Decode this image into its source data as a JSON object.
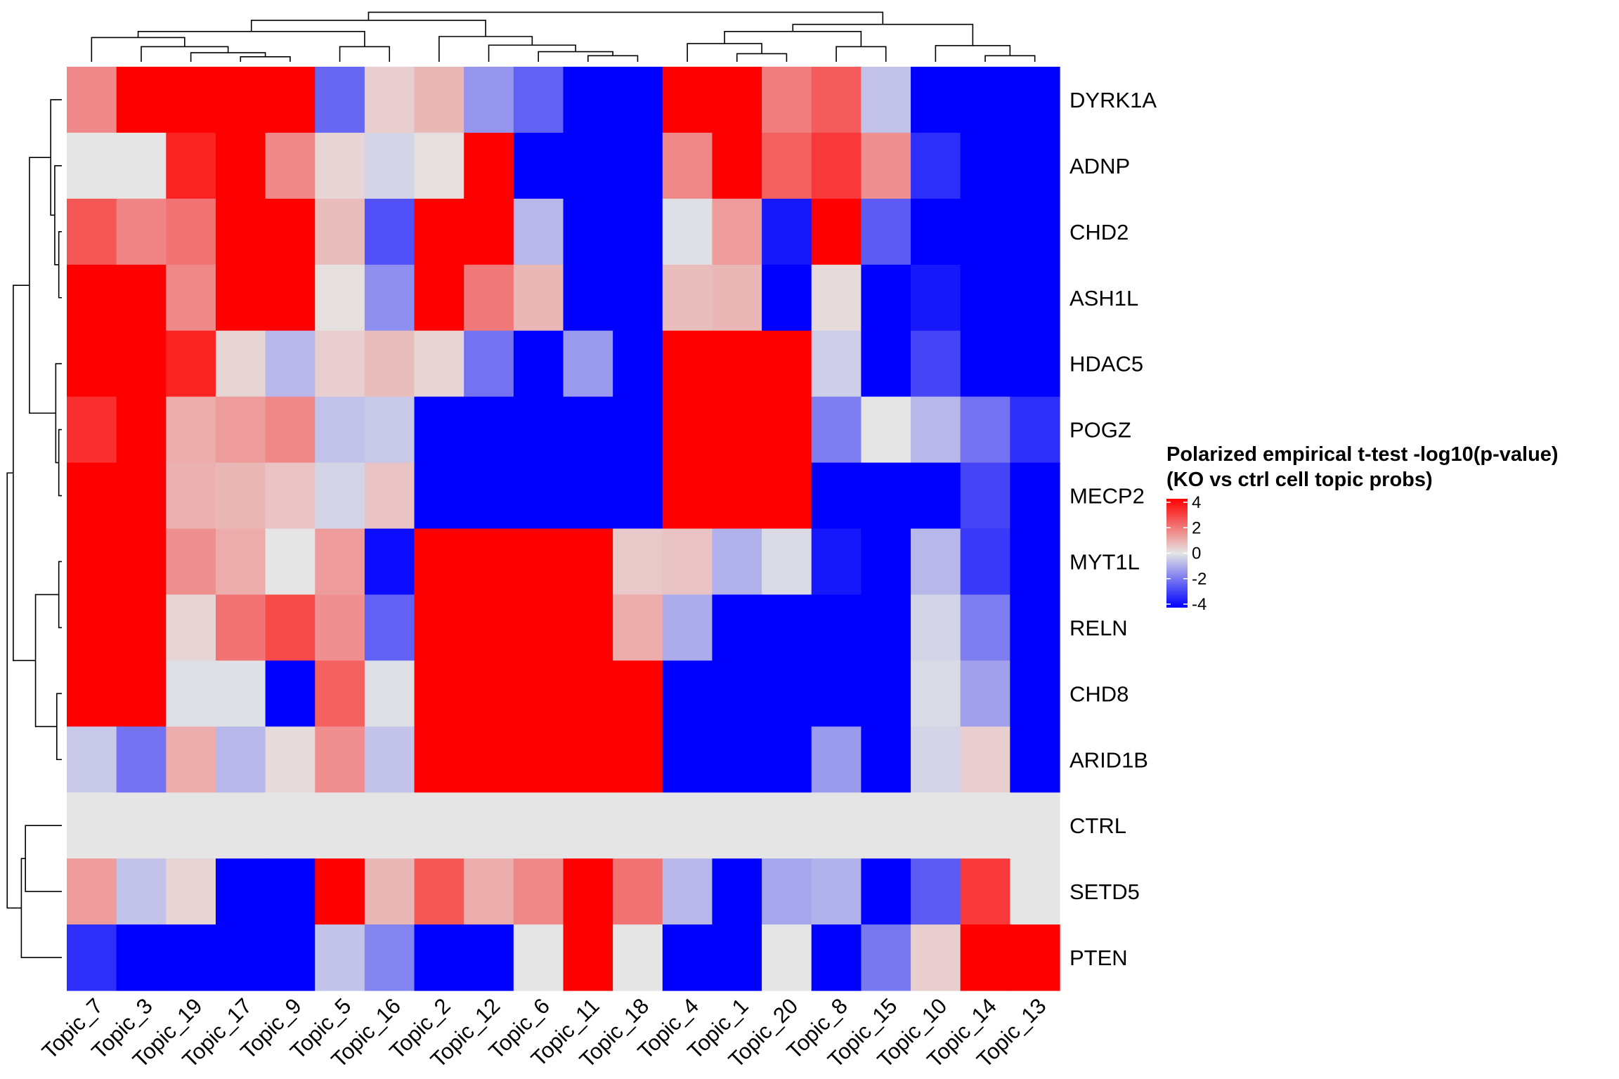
{
  "chart_data": {
    "type": "heatmap",
    "title": "",
    "rows": [
      "DYRK1A",
      "ADNP",
      "CHD2",
      "ASH1L",
      "HDAC5",
      "POGZ",
      "MECP2",
      "MYT1L",
      "RELN",
      "CHD8",
      "ARID1B",
      "CTRL",
      "SETD5",
      "PTEN"
    ],
    "columns": [
      "Topic_7",
      "Topic_3",
      "Topic_19",
      "Topic_17",
      "Topic_9",
      "Topic_5",
      "Topic_16",
      "Topic_2",
      "Topic_12",
      "Topic_6",
      "Topic_11",
      "Topic_18",
      "Topic_4",
      "Topic_1",
      "Topic_20",
      "Topic_8",
      "Topic_15",
      "Topic_10",
      "Topic_14",
      "Topic_13"
    ],
    "values": [
      [
        1.6,
        4,
        4,
        4,
        4,
        -2.2,
        0.4,
        0.8,
        -1.4,
        -2.3,
        -4,
        -4,
        4,
        4,
        1.8,
        2.4,
        -0.6,
        -4,
        -4,
        -4
      ],
      [
        0,
        0,
        3.4,
        4,
        1.6,
        0.3,
        -0.3,
        0.1,
        4,
        -4,
        -4,
        -4,
        1.6,
        4,
        2.3,
        3,
        1.5,
        -3.2,
        -4,
        -4
      ],
      [
        2.5,
        1.7,
        2,
        4,
        4,
        0.7,
        -2.6,
        4,
        4,
        -0.8,
        -4,
        -4,
        -0.1,
        1.3,
        -3.6,
        4,
        -2.4,
        -4,
        -4,
        -4
      ],
      [
        4,
        4,
        1.6,
        4,
        4,
        0.1,
        -1.5,
        4,
        1.9,
        0.8,
        -4,
        -4,
        0.7,
        0.8,
        -4,
        0.2,
        -4,
        -3.6,
        -4,
        -4
      ],
      [
        4,
        4,
        3.4,
        0.3,
        -0.8,
        0.4,
        0.7,
        0.3,
        -2,
        -4,
        -1.3,
        -4,
        4,
        4,
        4,
        -0.4,
        -4,
        -2.8,
        -4,
        -4
      ],
      [
        3.2,
        4,
        1,
        1.3,
        1.6,
        -0.6,
        -0.5,
        -4,
        -4,
        -4,
        -4,
        -4,
        4,
        4,
        4,
        -1.8,
        0,
        -0.8,
        -2,
        -3.2
      ],
      [
        4,
        4,
        0.9,
        0.8,
        0.6,
        -0.3,
        0.6,
        -4,
        -4,
        -4,
        -4,
        -4,
        4,
        4,
        4,
        -4,
        -4,
        -4,
        -2.8,
        -4
      ],
      [
        4,
        4,
        1.5,
        1,
        0,
        1.3,
        -3.8,
        4,
        4,
        4,
        4,
        0.5,
        0.6,
        -0.9,
        -0.2,
        -3.6,
        -4,
        -0.8,
        -3,
        -4
      ],
      [
        4,
        4,
        0.3,
        2,
        2.7,
        1.5,
        -2.3,
        4,
        4,
        4,
        4,
        1,
        -1,
        -4,
        -4,
        -4,
        -4,
        -0.3,
        -1.8,
        -4
      ],
      [
        4,
        4,
        -0.1,
        -0.1,
        -4,
        2.3,
        -0.1,
        4,
        4,
        4,
        4,
        4,
        -4,
        -4,
        -4,
        -4,
        -4,
        -0.2,
        -1.2,
        -4
      ],
      [
        -0.5,
        -2,
        1,
        -0.8,
        0.2,
        1.5,
        -0.6,
        4,
        4,
        4,
        4,
        4,
        -4,
        -4,
        -4,
        -1.3,
        -4,
        -0.3,
        0.4,
        -4
      ],
      [
        0,
        0,
        0,
        0,
        0,
        0,
        0,
        0,
        0,
        0,
        0,
        0,
        0,
        0,
        0,
        0,
        0,
        0,
        0,
        0
      ],
      [
        1.3,
        -0.6,
        0.3,
        -4,
        -4,
        4,
        0.8,
        2.5,
        1,
        1.6,
        4,
        2,
        -0.8,
        -4,
        -1.1,
        -0.9,
        -4,
        -2.4,
        3,
        0
      ],
      [
        -3.2,
        -4,
        -4,
        -4,
        -4,
        -0.6,
        -1.7,
        -4,
        -4,
        0,
        4,
        0,
        -4,
        -4,
        0,
        -4,
        -1.9,
        0.4,
        4,
        4
      ]
    ],
    "color_scale": {
      "min": -4,
      "mid": 0,
      "max": 4,
      "low_color": "#0000FF",
      "mid_color": "#E5E5E5",
      "high_color": "#FF0000"
    },
    "legend": {
      "title_line1": "Polarized empirical t-test -log10(p-value)",
      "title_line2": "(KO vs ctrl cell topic probs)",
      "ticks": [
        "4",
        "2",
        "0",
        "-2",
        "-4"
      ],
      "placement": "right"
    },
    "dendrograms": {
      "rows": "left",
      "columns": "top"
    }
  }
}
